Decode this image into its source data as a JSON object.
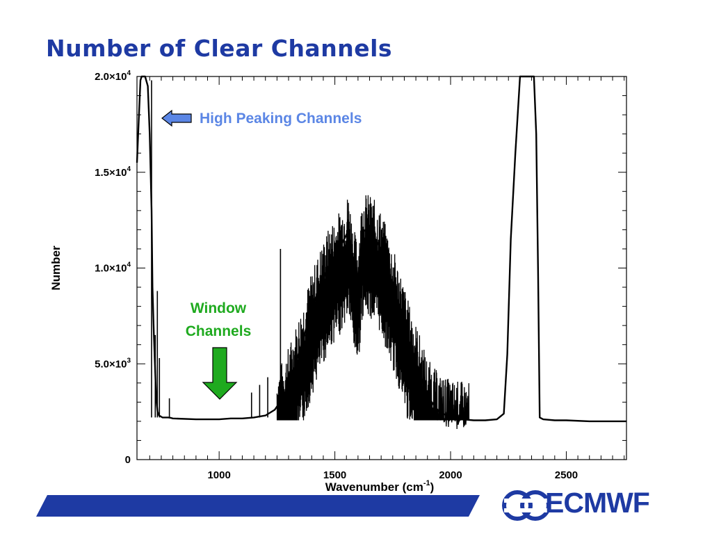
{
  "slide": {
    "title": "Number of Clear Channels",
    "logo_text": "ECMWF"
  },
  "colors": {
    "title": "#1e3aa3",
    "brand_blue": "#1e3aa3",
    "data_line": "#000000",
    "high_peaking": "#5b86e5",
    "window": "#1faa1f"
  },
  "annotations": {
    "high_peaking": "High Peaking Channels",
    "window_line1": "Window",
    "window_line2": "Channels"
  },
  "chart_data": {
    "type": "line",
    "title": "",
    "xlabel": "Wavenumber (cm-1)",
    "xlabel_main": "Wavenumber (cm",
    "xlabel_sup": "-1",
    "xlabel_close": ")",
    "ylabel": "Number",
    "xlim": [
      645,
      2760
    ],
    "ylim": [
      0,
      20000
    ],
    "x_ticks": [
      {
        "value": 1000,
        "label": "1000"
      },
      {
        "value": 1500,
        "label": "1500"
      },
      {
        "value": 2000,
        "label": "2000"
      },
      {
        "value": 2500,
        "label": "2500"
      }
    ],
    "y_ticks": [
      {
        "value": 0,
        "mant": "0",
        "exp": ""
      },
      {
        "value": 5000,
        "mant": "5.0×10",
        "exp": "3"
      },
      {
        "value": 10000,
        "mant": "1.0×10",
        "exp": "4"
      },
      {
        "value": 15000,
        "mant": "1.5×10",
        "exp": "4"
      },
      {
        "value": 20000,
        "mant": "2.0×10",
        "exp": "4"
      }
    ],
    "grid": false,
    "series": [
      {
        "x": [
          645,
          652,
          660,
          665,
          680,
          692,
          700,
          708,
          712,
          718,
          724,
          728,
          734,
          740,
          748,
          755,
          765,
          780,
          790,
          800,
          900,
          1000,
          1050,
          1100,
          1150,
          1200,
          1240,
          1280,
          1320,
          1360,
          1400,
          1440,
          1480,
          1520,
          1560,
          1580,
          1600,
          1620,
          1660,
          1700,
          1740,
          1780,
          1820,
          1860,
          1900,
          1950,
          2000,
          2050,
          2100,
          2150,
          2200,
          2230,
          2245,
          2260,
          2280,
          2300,
          2330,
          2360,
          2370,
          2378,
          2385,
          2400,
          2450,
          2500,
          2600,
          2700,
          2760
        ],
        "y": [
          15500,
          17500,
          19800,
          20000,
          20000,
          19500,
          17000,
          13000,
          9000,
          6500,
          4500,
          3200,
          2500,
          2300,
          2250,
          2200,
          2200,
          2200,
          2180,
          2150,
          2100,
          2100,
          2150,
          2150,
          2200,
          2300,
          2600,
          3300,
          4600,
          6200,
          7800,
          9200,
          10300,
          11000,
          12000,
          10200,
          9400,
          12000,
          11800,
          11000,
          9500,
          8000,
          6200,
          4800,
          3300,
          2500,
          2200,
          2100,
          2050,
          2050,
          2100,
          2400,
          5500,
          11500,
          16000,
          20000,
          20000,
          20000,
          17000,
          10000,
          2200,
          2100,
          2050,
          2050,
          2000,
          2000,
          2000
        ]
      }
    ]
  }
}
